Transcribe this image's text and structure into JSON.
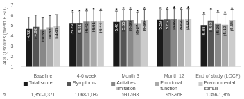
{
  "chart_data": {
    "type": "bar",
    "categories": [
      "Baseline",
      "4-6 week",
      "Month 3",
      "Month 12",
      "End of study (LOCF)"
    ],
    "series": [
      {
        "name": "Total score",
        "color": "#1a1a1a",
        "values": [
          4.72,
          5.29,
          5.4,
          5.59,
          5.08
        ],
        "errors": [
          1.15,
          1.05,
          1.05,
          1.0,
          1.05
        ],
        "value_labels": [
          "4.72",
          "5.29",
          "5.40",
          "5.59",
          "5.08"
        ]
      },
      {
        "name": "Symptoms",
        "color": "#555555",
        "values": [
          4.92,
          5.31,
          5.55,
          5.63,
          5.52
        ],
        "errors": [
          1.15,
          1.05,
          1.05,
          1.0,
          1.05
        ],
        "value_labels": [
          "4.92",
          "5.31",
          "5.55",
          "5.63",
          "5.52"
        ]
      },
      {
        "name": "Activities\nlimitation",
        "color": "#888888",
        "values": [
          4.66,
          5.42,
          5.58,
          5.69,
          5.26
        ],
        "errors": [
          1.15,
          1.05,
          1.05,
          1.0,
          1.05
        ],
        "value_labels": [
          "4.66",
          "5.42",
          "5.58",
          "5.69",
          "5.26"
        ]
      },
      {
        "name": "Emotional\nfunction",
        "color": "#aaaaaa",
        "values": [
          4.87,
          5.51,
          5.27,
          5.62,
          5.12
        ],
        "errors": [
          1.15,
          1.05,
          1.05,
          1.0,
          1.05
        ],
        "value_labels": [
          "4.87",
          "5.51",
          "5.27",
          "5.62",
          "5.12"
        ]
      },
      {
        "name": "Environmental\nstimuli",
        "color": "#cccccc",
        "values": [
          4.97,
          5.44,
          5.58,
          5.68,
          5.58
        ],
        "errors": [
          1.15,
          1.05,
          1.05,
          1.0,
          1.05
        ],
        "value_labels": [
          "4.97",
          "5.44",
          "5.58",
          "5.68",
          "5.58"
        ]
      }
    ],
    "ylabel": "AQLQ scores (mean ± SD)",
    "ylim": [
      1,
      7
    ],
    "yticks": [
      1,
      2,
      3,
      4,
      5,
      6,
      7
    ],
    "grid": false,
    "legend": "bottom",
    "data_labels": true,
    "annotations": [
      {
        "text": "*",
        "category": "4-6 week",
        "series": "Total score"
      },
      {
        "text": "*",
        "category": "4-6 week",
        "series": "Symptoms"
      },
      {
        "text": "*",
        "category": "4-6 week",
        "series": "Activities\nlimitation"
      },
      {
        "text": "*",
        "category": "4-6 week",
        "series": "Emotional\nfunction"
      },
      {
        "text": "*",
        "category": "4-6 week",
        "series": "Environmental\nstimuli"
      },
      {
        "text": "*",
        "category": "Month 3",
        "series": "Total score"
      },
      {
        "text": "*",
        "category": "Month 3",
        "series": "Symptoms"
      },
      {
        "text": "*",
        "category": "Month 3",
        "series": "Activities\nlimitation"
      },
      {
        "text": "*",
        "category": "Month 3",
        "series": "Emotional\nfunction"
      },
      {
        "text": "*",
        "category": "Month 3",
        "series": "Environmental\nstimuli"
      },
      {
        "text": "*",
        "category": "Month 12",
        "series": "Total score"
      },
      {
        "text": "*",
        "category": "Month 12",
        "series": "Symptoms"
      },
      {
        "text": "*",
        "category": "Month 12",
        "series": "Activities\nlimitation"
      },
      {
        "text": "*",
        "category": "Month 12",
        "series": "Emotional\nfunction"
      },
      {
        "text": "*",
        "category": "Month 12",
        "series": "Environmental\nstimuli"
      },
      {
        "text": "*",
        "category": "End of study (LOCF)",
        "series": "Total score"
      },
      {
        "text": "*",
        "category": "End of study (LOCF)",
        "series": "Symptoms"
      },
      {
        "text": "*",
        "category": "End of study (LOCF)",
        "series": "Activities\nlimitation"
      },
      {
        "text": "*",
        "category": "End of study (LOCF)",
        "series": "Emotional\nfunction"
      },
      {
        "text": "*",
        "category": "End of study (LOCF)",
        "series": "Environmental\nstimuli"
      }
    ],
    "row_label": "n",
    "n_labels": [
      "1,350-1,371",
      "1,068-1,082",
      "991-998",
      "953-968",
      "1,356-1,366"
    ]
  }
}
